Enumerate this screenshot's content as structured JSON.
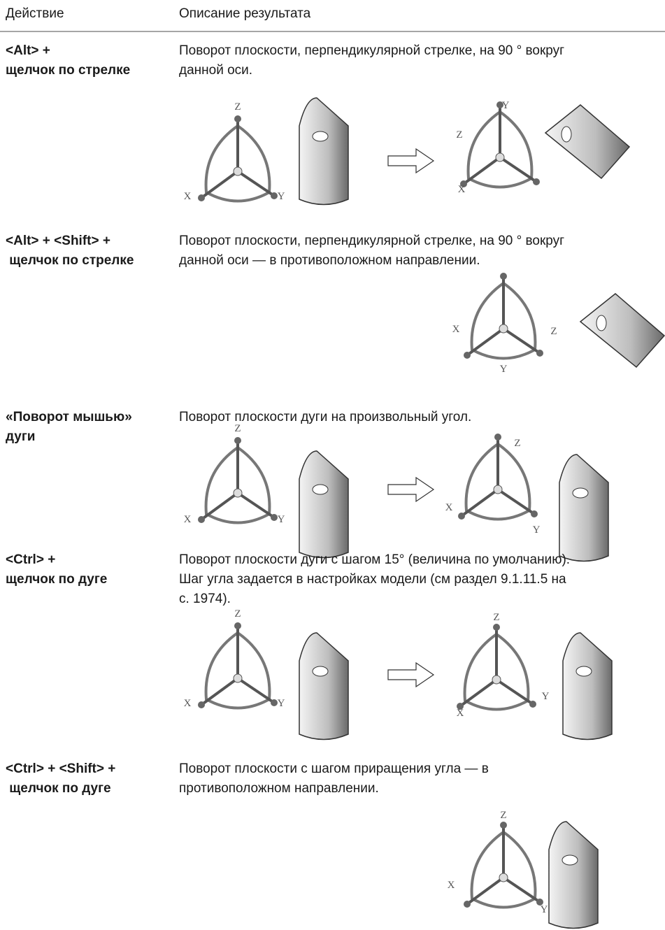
{
  "header": {
    "action": "Действие",
    "description": "Описание результата"
  },
  "rows": [
    {
      "action": [
        "<Alt> +",
        "щелчок по стрелке"
      ],
      "description": [
        "Поворот плоскости, перпендикулярной стрелке, на 90 ° вокруг",
        "данной оси."
      ],
      "figures": [
        [
          "Z",
          "X",
          "Y"
        ],
        [
          "Y",
          "Z",
          "X"
        ]
      ]
    },
    {
      "action": [
        "<Alt> + <Shift> +",
        " щелчок по стрелке"
      ],
      "description": [
        "Поворот плоскости, перпендикулярной стрелке, на 90 ° вокруг",
        "данной оси — в противоположном направлении."
      ],
      "figures": [
        [
          "X",
          "Z",
          "Y"
        ]
      ]
    },
    {
      "action": [
        "«Поворот мышью»",
        "дуги"
      ],
      "description": [
        "Поворот плоскости дуги на произвольный угол."
      ],
      "figures": [
        [
          "Z",
          "X",
          "Y"
        ],
        [
          "Z",
          "X",
          "Y"
        ]
      ]
    },
    {
      "action": [
        "<Ctrl> +",
        "щелчок по дуге"
      ],
      "description": [
        "Поворот плоскости дуги с шагом 15° (величина по умолчанию).",
        "Шаг угла задается в настройках модели (см раздел 9.1.11.5 на",
        "с. 1974)."
      ],
      "figures": [
        [
          "Z",
          "X",
          "Y"
        ],
        [
          "Z",
          "X",
          "Y"
        ]
      ]
    },
    {
      "action": [
        "<Ctrl> + <Shift> +",
        " щелчок по дуге"
      ],
      "description": [
        "Поворот плоскости с шагом приращения угла — в",
        "противоположном направлении."
      ],
      "figures": [
        [
          "Z",
          "X",
          "Y"
        ]
      ]
    }
  ]
}
